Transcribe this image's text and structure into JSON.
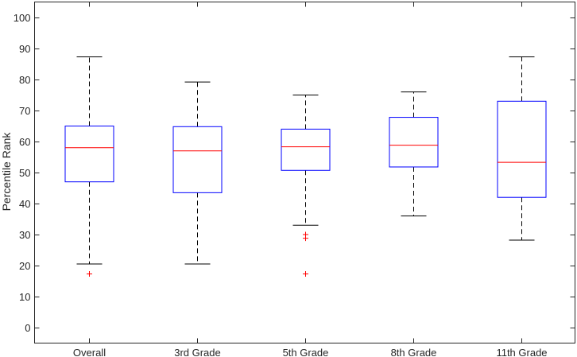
{
  "chart_data": {
    "type": "boxplot",
    "title": "",
    "xlabel": "",
    "ylabel": "Percentile Rank",
    "ylim": [
      -5,
      105
    ],
    "yticks": [
      0,
      10,
      20,
      30,
      40,
      50,
      60,
      70,
      80,
      90,
      100
    ],
    "grid": false,
    "legend": "none",
    "colors": {
      "box": "#0000ff",
      "median": "#ff0000",
      "whisker": "#000000",
      "outlier": "#ff0000",
      "axis": "#262626"
    },
    "categories": [
      "Overall",
      "3rd Grade",
      "5th Grade",
      "8th Grade",
      "11th Grade"
    ],
    "boxes": [
      {
        "category": "Overall",
        "whisker_low": 20.5,
        "q1": 47.0,
        "median": 58.0,
        "q3": 65.0,
        "whisker_high": 87.3,
        "outliers": [
          17.3
        ]
      },
      {
        "category": "3rd Grade",
        "whisker_low": 20.5,
        "q1": 43.5,
        "median": 57.0,
        "q3": 64.8,
        "whisker_high": 79.2,
        "outliers": []
      },
      {
        "category": "5th Grade",
        "whisker_low": 33.0,
        "q1": 50.7,
        "median": 58.3,
        "q3": 64.0,
        "whisker_high": 75.0,
        "outliers": [
          30.0,
          28.8,
          17.3
        ]
      },
      {
        "category": "8th Grade",
        "whisker_low": 36.0,
        "q1": 51.8,
        "median": 58.8,
        "q3": 67.8,
        "whisker_high": 76.0,
        "outliers": []
      },
      {
        "category": "11th Grade",
        "whisker_low": 28.2,
        "q1": 42.0,
        "median": 53.3,
        "q3": 73.0,
        "whisker_high": 87.3,
        "outliers": []
      }
    ]
  }
}
